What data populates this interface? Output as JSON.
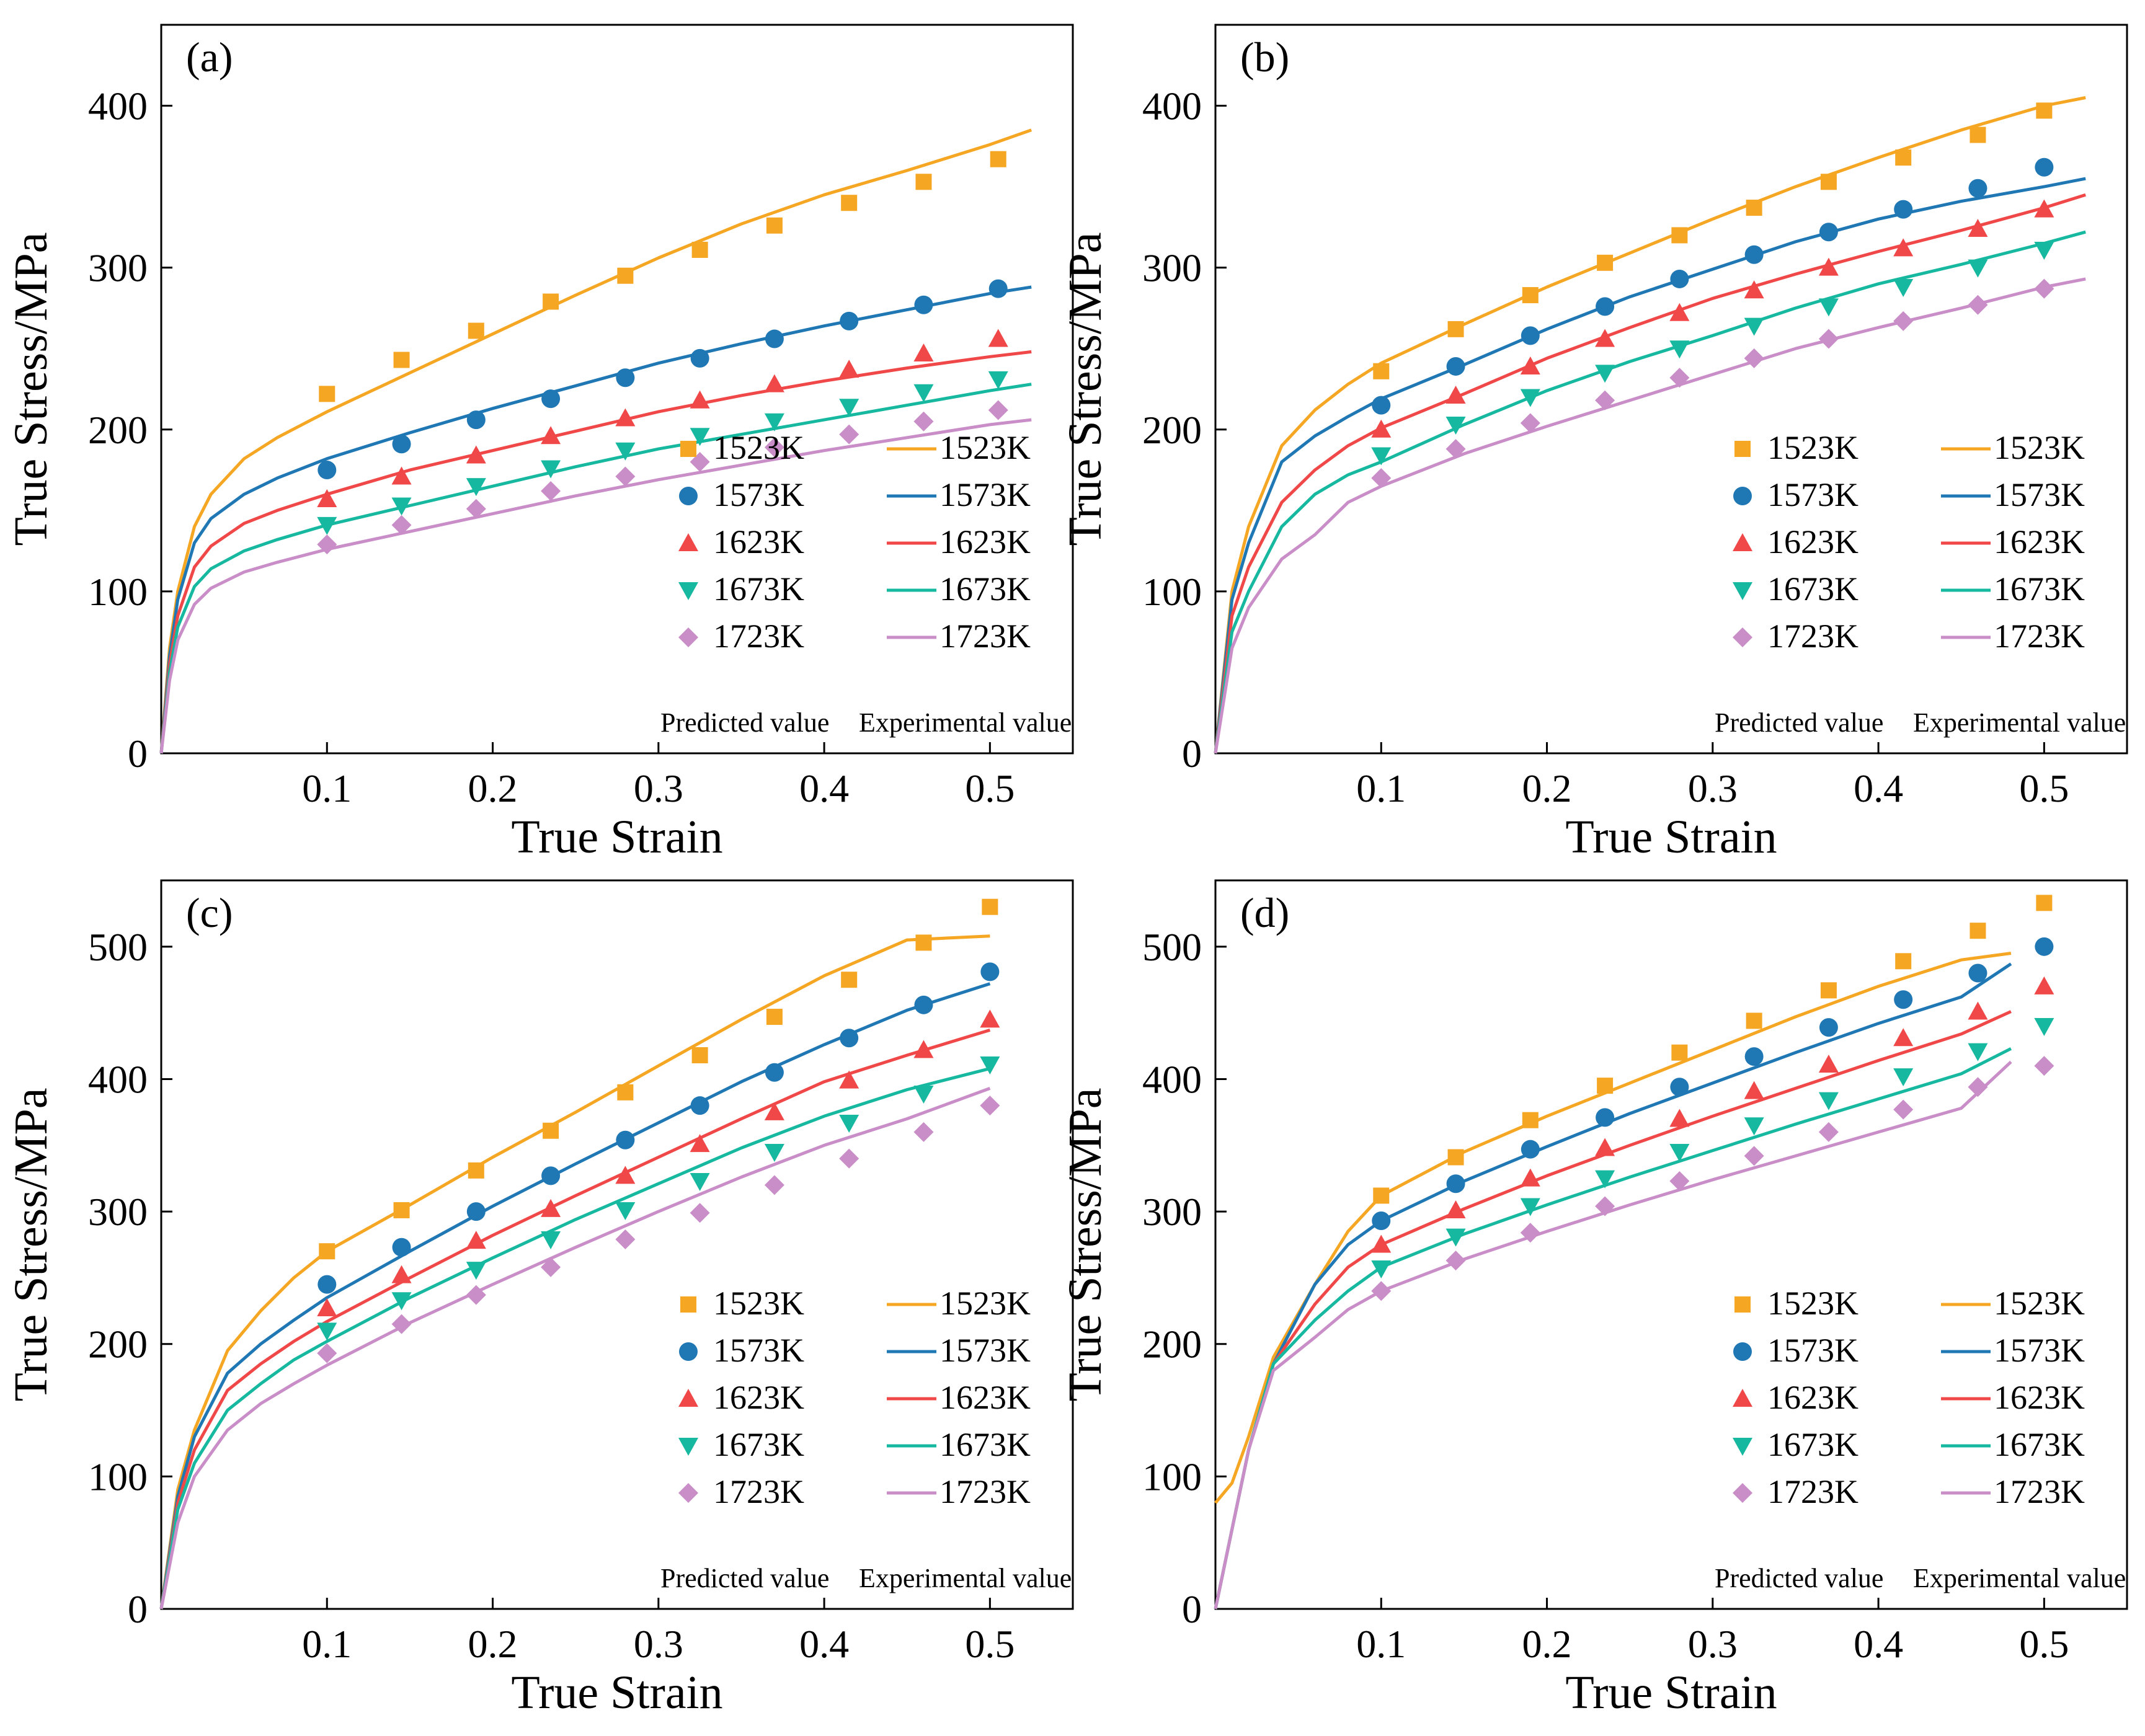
{
  "figure": {
    "panels": [
      "a",
      "b",
      "c",
      "d"
    ]
  },
  "colors": {
    "1523K": "#F5A623",
    "1573K": "#1F77B4",
    "1623K": "#F04848",
    "1673K": "#17B8A0",
    "1723K": "#C98DC8",
    "axis": "#000000"
  },
  "chart_data": [
    {
      "id": "a",
      "type": "line",
      "panel_label": "(a)",
      "xlabel": "True Strain",
      "ylabel": "True Stress/MPa",
      "xlim": [
        0,
        0.55
      ],
      "ylim": [
        0,
        450
      ],
      "xticks": [
        0.1,
        0.2,
        0.3,
        0.4,
        0.5
      ],
      "yticks": [
        0,
        100,
        200,
        300,
        400
      ],
      "legend_position": "bottom-right",
      "legend_note_left": "Predicted value",
      "legend_note_right": "Experimental value",
      "legend_labels": [
        "1523K",
        "1573K",
        "1623K",
        "1673K",
        "1723K"
      ],
      "marker_shapes": [
        "square",
        "circle",
        "triangle-up",
        "triangle-down",
        "diamond"
      ],
      "points_x": [
        0.1,
        0.145,
        0.19,
        0.235,
        0.28,
        0.325,
        0.37,
        0.415,
        0.46,
        0.505
      ],
      "points": [
        [
          222,
          243,
          261,
          279,
          295,
          311,
          326,
          340,
          353,
          367
        ],
        [
          175,
          191,
          206,
          219,
          232,
          244,
          256,
          267,
          277,
          287
        ],
        [
          157,
          171,
          184,
          196,
          207,
          218,
          228,
          237,
          247,
          256
        ],
        [
          141,
          153,
          165,
          176,
          187,
          196,
          205,
          214,
          223,
          231
        ],
        [
          129,
          141,
          151,
          162,
          171,
          180,
          189,
          197,
          205,
          212
        ]
      ],
      "curves_x": [
        0,
        0.005,
        0.01,
        0.02,
        0.03,
        0.05,
        0.07,
        0.1,
        0.15,
        0.2,
        0.25,
        0.3,
        0.35,
        0.4,
        0.45,
        0.5,
        0.525
      ],
      "curves": [
        [
          0,
          65,
          100,
          140,
          160,
          182,
          195,
          211,
          235,
          259,
          283,
          306,
          327,
          345,
          360,
          376,
          385
        ],
        [
          0,
          60,
          95,
          130,
          145,
          160,
          170,
          182,
          198,
          213,
          227,
          241,
          253,
          264,
          274,
          284,
          288
        ],
        [
          0,
          55,
          85,
          115,
          128,
          142,
          150,
          160,
          175,
          187,
          199,
          211,
          221,
          230,
          238,
          245,
          248
        ],
        [
          0,
          50,
          78,
          103,
          114,
          125,
          132,
          141,
          153,
          165,
          177,
          188,
          197,
          206,
          215,
          224,
          228
        ],
        [
          0,
          45,
          70,
          92,
          102,
          112,
          118,
          126,
          137,
          148,
          159,
          169,
          178,
          187,
          195,
          203,
          206
        ]
      ]
    },
    {
      "id": "b",
      "type": "line",
      "panel_label": "(b)",
      "xlabel": "True Strain",
      "ylabel": "True Stress/MPa",
      "xlim": [
        0,
        0.55
      ],
      "ylim": [
        0,
        450
      ],
      "xticks": [
        0.1,
        0.2,
        0.3,
        0.4,
        0.5
      ],
      "yticks": [
        0,
        100,
        200,
        300,
        400
      ],
      "legend_position": "bottom-right",
      "legend_note_left": "Predicted value",
      "legend_note_right": "Experimental value",
      "legend_labels": [
        "1523K",
        "1573K",
        "1623K",
        "1673K",
        "1723K"
      ],
      "marker_shapes": [
        "square",
        "circle",
        "triangle-up",
        "triangle-down",
        "diamond"
      ],
      "points_x": [
        0.1,
        0.145,
        0.19,
        0.235,
        0.28,
        0.325,
        0.37,
        0.415,
        0.46,
        0.5
      ],
      "points": [
        [
          236,
          262,
          283,
          303,
          320,
          337,
          353,
          368,
          382,
          397
        ],
        [
          215,
          239,
          258,
          276,
          293,
          308,
          322,
          336,
          349,
          362
        ],
        [
          200,
          221,
          239,
          256,
          272,
          286,
          300,
          312,
          324,
          336
        ],
        [
          184,
          203,
          220,
          235,
          250,
          264,
          276,
          288,
          300,
          311
        ],
        [
          170,
          188,
          204,
          218,
          232,
          244,
          256,
          267,
          277,
          287
        ]
      ],
      "curves_x": [
        0,
        0.01,
        0.02,
        0.04,
        0.06,
        0.08,
        0.1,
        0.15,
        0.2,
        0.25,
        0.3,
        0.35,
        0.4,
        0.45,
        0.5,
        0.525
      ],
      "curves": [
        [
          0,
          100,
          140,
          190,
          212,
          228,
          241,
          265,
          288,
          309,
          330,
          350,
          368,
          385,
          400,
          405
        ],
        [
          0,
          95,
          130,
          180,
          196,
          208,
          219,
          240,
          262,
          282,
          299,
          316,
          330,
          341,
          350,
          355
        ],
        [
          0,
          85,
          115,
          155,
          175,
          190,
          201,
          222,
          244,
          263,
          281,
          296,
          310,
          323,
          337,
          345
        ],
        [
          0,
          75,
          100,
          140,
          160,
          172,
          180,
          203,
          224,
          242,
          258,
          275,
          290,
          302,
          315,
          322
        ],
        [
          0,
          65,
          90,
          120,
          135,
          155,
          165,
          185,
          202,
          218,
          234,
          250,
          263,
          275,
          288,
          293
        ]
      ]
    },
    {
      "id": "c",
      "type": "line",
      "panel_label": "(c)",
      "xlabel": "True Strain",
      "ylabel": "True Stress/MPa",
      "xlim": [
        0,
        0.55
      ],
      "ylim": [
        0,
        550
      ],
      "xticks": [
        0.1,
        0.2,
        0.3,
        0.4,
        0.5
      ],
      "yticks": [
        0,
        100,
        200,
        300,
        400,
        500
      ],
      "legend_position": "bottom-right",
      "legend_note_left": "Predicted value",
      "legend_note_right": "Experimental value",
      "legend_labels": [
        "1523K",
        "1573K",
        "1623K",
        "1673K",
        "1723K"
      ],
      "marker_shapes": [
        "square",
        "circle",
        "triangle-up",
        "triangle-down",
        "diamond"
      ],
      "points_x": [
        0.1,
        0.145,
        0.19,
        0.235,
        0.28,
        0.325,
        0.37,
        0.415,
        0.46,
        0.5
      ],
      "points": [
        [
          270,
          301,
          331,
          361,
          390,
          418,
          447,
          475,
          503,
          530
        ],
        [
          245,
          273,
          300,
          327,
          354,
          380,
          405,
          431,
          456,
          481
        ],
        [
          227,
          252,
          278,
          302,
          327,
          351,
          375,
          399,
          422,
          445
        ],
        [
          210,
          233,
          256,
          279,
          301,
          323,
          345,
          367,
          389,
          411
        ],
        [
          193,
          215,
          237,
          258,
          279,
          299,
          320,
          340,
          360,
          380
        ]
      ],
      "curves_x": [
        0,
        0.01,
        0.02,
        0.04,
        0.06,
        0.08,
        0.1,
        0.15,
        0.2,
        0.25,
        0.3,
        0.35,
        0.4,
        0.45,
        0.5
      ],
      "curves": [
        [
          0,
          90,
          135,
          195,
          225,
          250,
          270,
          305,
          341,
          375,
          410,
          445,
          478,
          505,
          508
        ],
        [
          0,
          85,
          130,
          178,
          200,
          218,
          235,
          270,
          304,
          336,
          367,
          398,
          426,
          452,
          472
        ],
        [
          0,
          80,
          120,
          165,
          185,
          202,
          217,
          250,
          282,
          312,
          341,
          370,
          398,
          418,
          437
        ],
        [
          0,
          75,
          110,
          150,
          170,
          188,
          202,
          235,
          265,
          294,
          321,
          348,
          372,
          392,
          408
        ],
        [
          0,
          65,
          100,
          135,
          155,
          170,
          184,
          216,
          245,
          273,
          300,
          326,
          350,
          370,
          393
        ]
      ]
    },
    {
      "id": "d",
      "type": "line",
      "panel_label": "(d)",
      "xlabel": "True Strain",
      "ylabel": "True Stress/MPa",
      "xlim": [
        0,
        0.55
      ],
      "ylim": [
        0,
        550
      ],
      "xticks": [
        0.1,
        0.2,
        0.3,
        0.4,
        0.5
      ],
      "yticks": [
        0,
        100,
        200,
        300,
        400,
        500
      ],
      "legend_position": "bottom-right",
      "legend_note_left": "Predicted value",
      "legend_note_right": "Experimental value",
      "legend_labels": [
        "1523K",
        "1573K",
        "1623K",
        "1673K",
        "1723K"
      ],
      "marker_shapes": [
        "square",
        "circle",
        "triangle-up",
        "triangle-down",
        "diamond"
      ],
      "points_x": [
        0.1,
        0.145,
        0.19,
        0.235,
        0.28,
        0.325,
        0.37,
        0.415,
        0.46,
        0.5
      ],
      "points": [
        [
          312,
          341,
          369,
          395,
          420,
          444,
          467,
          489,
          512,
          533
        ],
        [
          293,
          321,
          347,
          371,
          394,
          417,
          439,
          460,
          480,
          500
        ],
        [
          275,
          301,
          325,
          348,
          370,
          391,
          411,
          431,
          451,
          470
        ],
        [
          257,
          281,
          304,
          325,
          345,
          365,
          384,
          402,
          421,
          440
        ],
        [
          240,
          263,
          284,
          304,
          323,
          342,
          360,
          377,
          394,
          410
        ]
      ],
      "curves": [
        [
          80,
          95,
          130,
          190,
          245,
          285,
          312,
          345,
          372,
          397,
          422,
          447,
          470,
          490,
          495
        ],
        [
          0,
          60,
          120,
          185,
          245,
          275,
          293,
          323,
          349,
          374,
          397,
          420,
          442,
          462,
          487
        ],
        [
          0,
          60,
          120,
          185,
          230,
          258,
          275,
          302,
          327,
          350,
          372,
          393,
          414,
          434,
          451
        ],
        [
          0,
          60,
          120,
          185,
          218,
          240,
          258,
          283,
          305,
          326,
          346,
          366,
          385,
          404,
          423
        ],
        [
          0,
          60,
          120,
          180,
          205,
          226,
          240,
          264,
          285,
          305,
          324,
          342,
          360,
          378,
          413
        ]
      ],
      "curves_x": [
        0,
        0.01,
        0.02,
        0.035,
        0.06,
        0.08,
        0.1,
        0.15,
        0.2,
        0.25,
        0.3,
        0.35,
        0.4,
        0.45,
        0.48
      ]
    }
  ]
}
